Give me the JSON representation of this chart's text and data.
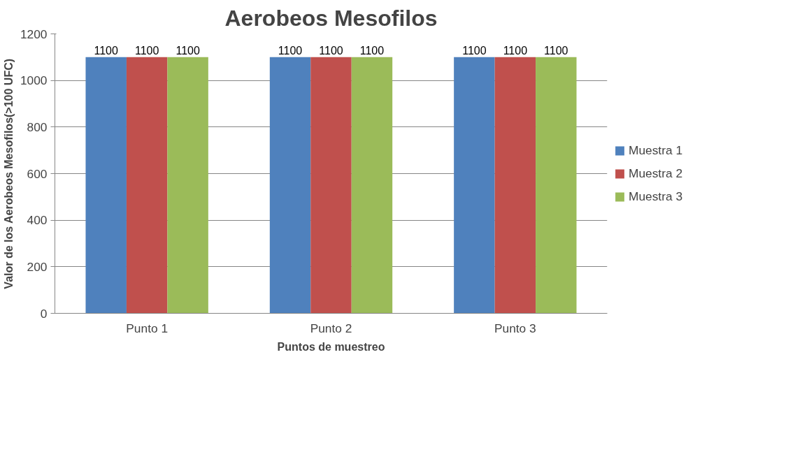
{
  "chart_data": {
    "type": "bar",
    "title": "Aerobeos Mesofilos",
    "xlabel": "Puntos de muestreo",
    "ylabel": "Valor de los Aerobeos Mesofilos(>100 UFC)",
    "categories": [
      "Punto 1",
      "Punto 2",
      "Punto 3"
    ],
    "series": [
      {
        "name": "Muestra 1",
        "color": "#4f81bd",
        "values": [
          1100,
          1100,
          1100
        ]
      },
      {
        "name": "Muestra 2",
        "color": "#c0504d",
        "values": [
          1100,
          1100,
          1100
        ]
      },
      {
        "name": "Muestra 3",
        "color": "#9bbb59",
        "values": [
          1100,
          1100,
          1100
        ]
      }
    ],
    "ylim": [
      0,
      1200
    ],
    "yticks": [
      0,
      200,
      400,
      600,
      800,
      1000,
      1200
    ],
    "grid": "y",
    "legend": "right",
    "data_labels": true
  }
}
